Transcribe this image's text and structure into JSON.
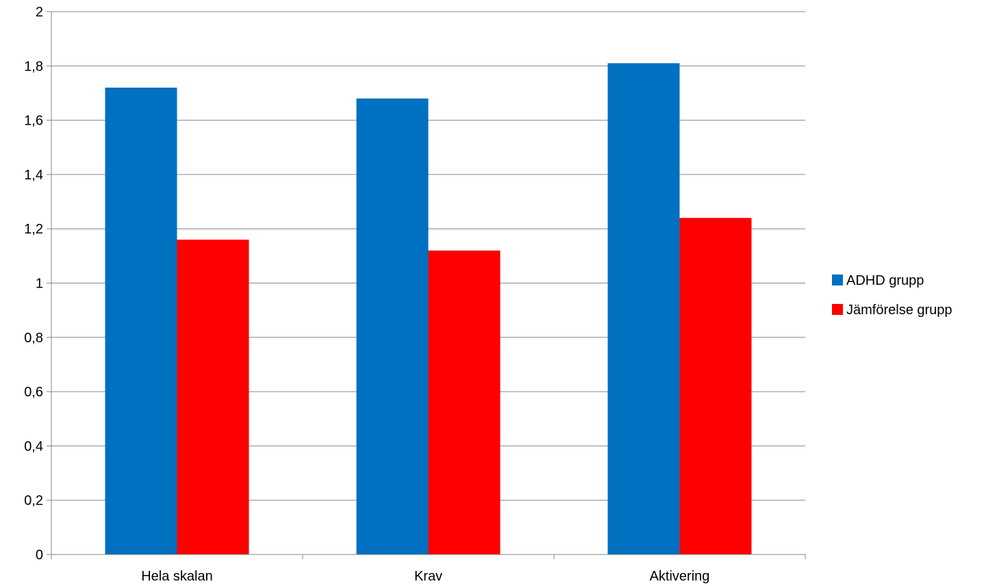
{
  "chart_data": {
    "type": "bar",
    "title": "",
    "xlabel": "",
    "ylabel": "",
    "categories": [
      "Hela skalan",
      "Krav",
      "Aktivering"
    ],
    "series": [
      {
        "name": "ADHD grupp",
        "color": "#0070C0",
        "values": [
          1.72,
          1.68,
          1.81
        ]
      },
      {
        "name": "Jämförelse grupp",
        "color": "#FF0000",
        "values": [
          1.16,
          1.12,
          1.24
        ]
      }
    ],
    "ylim": [
      0,
      2
    ],
    "yticks": [
      "0",
      "0,2",
      "0,4",
      "0,6",
      "0,8",
      "1",
      "1,2",
      "1,4",
      "1,6",
      "1,8",
      "2"
    ],
    "grid": true,
    "legend_position": "right"
  }
}
